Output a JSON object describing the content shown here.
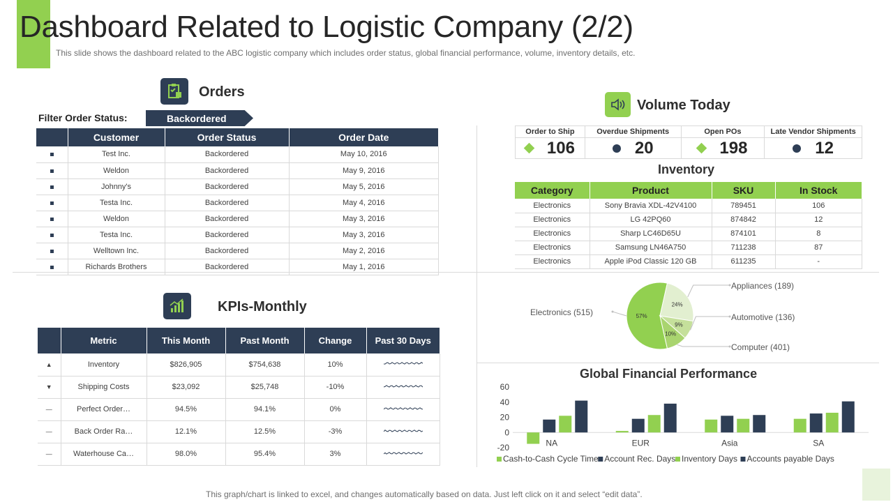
{
  "page": {
    "title": "Dashboard Related to Logistic Company (2/2)",
    "subtitle": "This slide shows the dashboard related to the ABC logistic company which includes order status, global financial performance, volume,  inventory details, etc.",
    "footer": "This graph/chart is linked to excel, and changes automatically based on data. Just left click on it and select “edit data”."
  },
  "colors": {
    "accent": "#92d050",
    "navy": "#2e3e55"
  },
  "orders": {
    "title": "Orders",
    "icon": "clipboard-icon",
    "filter_label": "Filter Order Status:",
    "filter_value": "Backordered",
    "columns": [
      "Customer",
      "Order Status",
      "Order Date"
    ],
    "rows": [
      [
        "Test Inc.",
        "Backordered",
        "May 10, 2016"
      ],
      [
        "Weldon",
        "Backordered",
        "May 9, 2016"
      ],
      [
        "Johnny's",
        "Backordered",
        "May 5, 2016"
      ],
      [
        "Testa Inc.",
        "Backordered",
        "May 4, 2016"
      ],
      [
        "Weldon",
        "Backordered",
        "May 3, 2016"
      ],
      [
        "Testa Inc.",
        "Backordered",
        "May 3, 2016"
      ],
      [
        "Welltown Inc.",
        "Backordered",
        "May 2, 2016"
      ],
      [
        "Richards Brothers",
        "Backordered",
        "May 1, 2016"
      ]
    ]
  },
  "kpis": {
    "title": "KPIs-Monthly",
    "icon": "growth-chart-icon",
    "columns": [
      "Metric",
      "This Month",
      "Past Month",
      "Change",
      "Past 30 Days"
    ],
    "rows": [
      {
        "marker": "▲",
        "metric": "Inventory",
        "this_month": "$826,905",
        "past_month": "$754,638",
        "change": "10%"
      },
      {
        "marker": "▼",
        "metric": "Shipping Costs",
        "this_month": "$23,092",
        "past_month": "$25,748",
        "change": "-10%"
      },
      {
        "marker": "—",
        "metric": "Perfect Order…",
        "this_month": "94.5%",
        "past_month": "94.1%",
        "change": "0%"
      },
      {
        "marker": "—",
        "metric": "Back Order Ra…",
        "this_month": "12.1%",
        "past_month": "12.5%",
        "change": "-3%"
      },
      {
        "marker": "—",
        "metric": "Waterhouse Ca…",
        "this_month": "98.0%",
        "past_month": "95.4%",
        "change": "3%"
      }
    ]
  },
  "volume": {
    "title": "Volume Today",
    "icon": "speaker-icon",
    "items": [
      {
        "label": "Order to Ship",
        "value": "106",
        "marker": "diamond"
      },
      {
        "label": "Overdue Shipments",
        "value": "20",
        "marker": "dot"
      },
      {
        "label": "Open POs",
        "value": "198",
        "marker": "diamond"
      },
      {
        "label": "Late Vendor Shipments",
        "value": "12",
        "marker": "dot"
      }
    ]
  },
  "inventory": {
    "title": "Inventory",
    "columns": [
      "Category",
      "Product",
      "SKU",
      "In Stock"
    ],
    "rows": [
      [
        "Electronics",
        "Sony Bravia XDL-42V4100",
        "789451",
        "106"
      ],
      [
        "Electronics",
        "LG 42PQ60",
        "874842",
        "12"
      ],
      [
        "Electronics",
        "Sharp LC46D65U",
        "874101",
        "8"
      ],
      [
        "Electronics",
        "Samsung LN46A750",
        "711238",
        "87"
      ],
      [
        "Electronics",
        "Apple iPod  Classic 120 GB",
        "611235",
        "-"
      ]
    ]
  },
  "chart_data": [
    {
      "type": "pie",
      "labels": [
        "Electronics (515)",
        "Appliances (189)",
        "Automotive (136)",
        "Computer (401)"
      ],
      "slice_labels": [
        "57%",
        "24%",
        "9%",
        "10%"
      ],
      "values": [
        57,
        24,
        9,
        10
      ],
      "colors": [
        "#92d050",
        "#e2efd0",
        "#c5e09b",
        "#a9d46f"
      ]
    },
    {
      "type": "bar",
      "title": "Global Financial Performance",
      "categories": [
        "NA",
        "EUR",
        "Asia",
        "SA"
      ],
      "ylim": [
        -20,
        60
      ],
      "yticks": [
        60,
        40,
        20,
        0,
        -20
      ],
      "legend_position": "bottom",
      "series": [
        {
          "name": "Cash-to-Cash Cycle Time",
          "color": "#92d050",
          "values": [
            -15,
            2,
            17,
            18
          ]
        },
        {
          "name": "Account Rec. Days",
          "color": "#2e3e55",
          "values": [
            17,
            18,
            22,
            25
          ]
        },
        {
          "name": "Inventory Days",
          "color": "#92d050",
          "values": [
            22,
            23,
            18,
            26
          ]
        },
        {
          "name": "Accounts payable Days",
          "color": "#2e3e55",
          "values": [
            42,
            38,
            23,
            41
          ]
        }
      ]
    }
  ]
}
